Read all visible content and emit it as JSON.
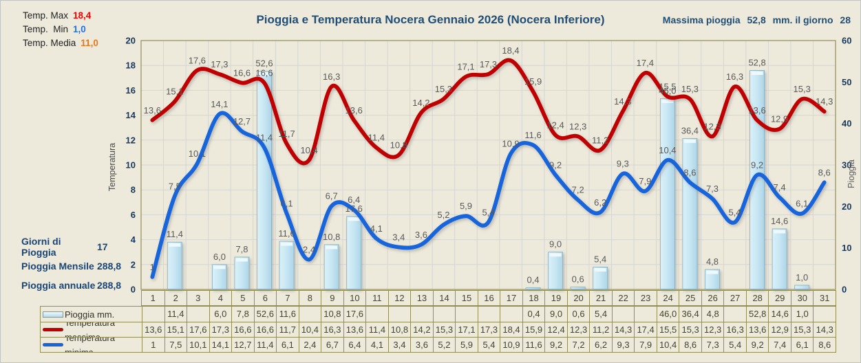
{
  "header": {
    "temp_stats": [
      {
        "label": "Temp. Max",
        "value": "18,4"
      },
      {
        "label": "Temp.  Min",
        "value": "1,0"
      },
      {
        "label": "Temp. Media",
        "value": "11,0"
      }
    ],
    "title": "Pioggia e Temperatura Nocera Gennaio 2026 (Nocera Inferiore)",
    "max_rain": {
      "label": "Massima pioggia",
      "value": "52,8",
      "middle": "mm. il giorno",
      "day": "28"
    }
  },
  "rain_stats": [
    {
      "label": "Giorni di Pioggia",
      "value": "17"
    },
    {
      "label": "Pioggia Mensile",
      "value": "288,8"
    },
    {
      "label": "Pioggia annuale",
      "value": "288,8"
    }
  ],
  "colors": {
    "temp_max": "#ff0000",
    "temp_min": "#2470e8",
    "temp_media": "#e8771c",
    "title_blue": "#1f4e79",
    "line_max": "#c00000",
    "line_min": "#1565dd",
    "bar_fill": "#c9e8f4",
    "background": "#edeadb",
    "grid": "#d5d5d3",
    "border_olive": "#918e58",
    "data_label": "#595959"
  },
  "chart_data": {
    "type": "combo bar+line",
    "title": "Pioggia e Temperatura Nocera Gennaio 2026 (Nocera Inferiore)",
    "x_days": [
      1,
      2,
      3,
      4,
      5,
      6,
      7,
      8,
      9,
      10,
      11,
      12,
      13,
      14,
      15,
      16,
      17,
      18,
      19,
      20,
      21,
      22,
      23,
      24,
      25,
      26,
      27,
      28,
      29,
      30,
      31
    ],
    "left_axis": {
      "label": "Temperatura",
      "min": 0,
      "max": 20,
      "step": 2
    },
    "right_axis": {
      "label": "Pioggia",
      "min": 0,
      "max": 60,
      "step": 10
    },
    "grid": true,
    "legend_position": "bottom-table",
    "series": [
      {
        "name": "Pioggia mm.",
        "type": "bar",
        "axis": "right",
        "values": [
          null,
          11.4,
          null,
          6.0,
          7.8,
          52.6,
          11.6,
          null,
          10.8,
          17.6,
          null,
          null,
          null,
          null,
          null,
          null,
          null,
          0.4,
          9.0,
          0.6,
          5.4,
          null,
          null,
          46.0,
          36.4,
          4.8,
          null,
          52.8,
          14.6,
          1.0,
          null
        ],
        "labels": [
          "",
          "11,4",
          "",
          "6,0",
          "7,8",
          "52,6",
          "11,6",
          "",
          "10,8",
          "17,6",
          "",
          "",
          "",
          "",
          "",
          "",
          "",
          "0,4",
          "9,0",
          "0,6",
          "5,4",
          "",
          "",
          "46,0",
          "36,4",
          "4,8",
          "",
          "52,8",
          "14,6",
          "1,0",
          ""
        ]
      },
      {
        "name": "Temperatura massima",
        "type": "line",
        "axis": "left",
        "values": [
          13.6,
          15.1,
          17.6,
          17.3,
          16.6,
          16.6,
          11.7,
          10.4,
          16.3,
          13.6,
          11.4,
          10.8,
          14.2,
          15.3,
          17.1,
          17.3,
          18.4,
          15.9,
          12.4,
          12.3,
          11.2,
          14.3,
          17.4,
          15.5,
          15.3,
          12.3,
          16.3,
          13.6,
          12.9,
          15.3,
          14.3
        ],
        "labels": [
          "13,6",
          "15,1",
          "17,6",
          "17,3",
          "16,6",
          "16,6",
          "11,7",
          "10,4",
          "16,3",
          "13,6",
          "11,4",
          "10,8",
          "14,2",
          "15,3",
          "17,1",
          "17,3",
          "18,4",
          "15,9",
          "12,4",
          "12,3",
          "11,2",
          "14,3",
          "17,4",
          "15,5",
          "15,3",
          "12,3",
          "16,3",
          "13,6",
          "12,9",
          "15,3",
          "14,3"
        ]
      },
      {
        "name": "Temperatura minima",
        "type": "line",
        "axis": "left",
        "values": [
          1,
          7.5,
          10.1,
          14.1,
          12.7,
          11.4,
          6.1,
          2.4,
          6.7,
          6.4,
          4.1,
          3.4,
          3.6,
          5.2,
          5.9,
          5.4,
          10.9,
          11.6,
          9.2,
          7.2,
          6.2,
          9.3,
          7.9,
          10.4,
          8.6,
          7.3,
          5.4,
          9.2,
          7.4,
          6.1,
          8.6
        ],
        "labels": [
          "1",
          "7,5",
          "10,1",
          "14,1",
          "12,7",
          "11,4",
          "6,1",
          "2,4",
          "6,7",
          "6,4",
          "4,1",
          "3,4",
          "3,6",
          "5,2",
          "5,9",
          "5,4",
          "10,9",
          "11,6",
          "9,2",
          "7,2",
          "6,2",
          "9,3",
          "7,9",
          "10,4",
          "8,6",
          "7,3",
          "5,4",
          "9,2",
          "7,4",
          "6,1",
          "8,6"
        ]
      }
    ]
  },
  "table": {
    "rows": [
      {
        "icon": "rain-bar-icon",
        "icon_class": "bar"
      },
      {
        "icon": "temp-max-line-icon",
        "icon_class": "line-red"
      },
      {
        "icon": "temp-min-line-icon",
        "icon_class": "line-blue"
      }
    ]
  }
}
